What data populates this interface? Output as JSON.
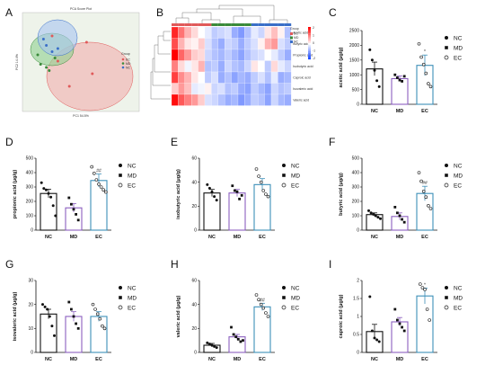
{
  "figure": {
    "panel_letters": [
      "A",
      "B",
      "C",
      "D",
      "E",
      "F",
      "G",
      "H",
      "I"
    ]
  },
  "pca": {
    "title": "PCA Score Plot",
    "xlabel": "PC1 54.5%",
    "ylabel": "PC2 14.4%",
    "legend_title": "Group",
    "groups": [
      {
        "name": "EC",
        "color": "#e05a5a",
        "points": [
          [
            -10,
            10
          ],
          [
            2,
            8
          ],
          [
            4,
            -2
          ],
          [
            -8,
            2
          ],
          [
            -4,
            -6
          ]
        ]
      },
      {
        "name": "MD",
        "color": "#3a8a3a",
        "points": [
          [
            -14,
            1
          ],
          [
            -11,
            -1
          ],
          [
            -15,
            4
          ],
          [
            -9,
            3
          ],
          [
            -12,
            0
          ]
        ]
      },
      {
        "name": "NC",
        "color": "#3a6fc8",
        "points": [
          [
            -12,
            7
          ],
          [
            -10,
            5
          ],
          [
            -13,
            9
          ],
          [
            -8,
            6
          ]
        ]
      }
    ]
  },
  "heatmap": {
    "legend_title": "Group",
    "groups": [
      "EC",
      "MD",
      "NC"
    ],
    "group_colors": [
      "#e05a5a",
      "#3a8a3a",
      "#3a6fc8"
    ],
    "scale_labels": [
      "2",
      "1",
      "0",
      "-1",
      "-2"
    ],
    "rows": [
      "Acetic acid",
      "Butyric acid",
      "Propionic acid",
      "Isobutyric acid",
      "Caproic acid",
      "Isovaleric acid",
      "Valeric acid"
    ],
    "values": [
      [
        1.7,
        1.1,
        0.6,
        0.3,
        0.0,
        -0.2,
        -0.5,
        -0.4,
        -0.3,
        -0.8,
        -1.0,
        -0.6,
        -0.2,
        -0.4,
        0.2,
        0.5,
        0.1,
        -0.6
      ],
      [
        1.4,
        0.6,
        0.2,
        0.1,
        0.4,
        -0.3,
        -0.6,
        -0.8,
        -0.4,
        -0.5,
        -0.8,
        -0.5,
        -0.3,
        0.1,
        0.6,
        0.8,
        -0.3,
        -0.5
      ],
      [
        2.0,
        1.2,
        0.8,
        0.4,
        0.3,
        -0.4,
        -0.6,
        -0.7,
        -0.5,
        -0.7,
        -0.9,
        -0.6,
        -0.4,
        -0.3,
        0.0,
        -0.2,
        -0.5,
        -0.8
      ],
      [
        1.0,
        0.3,
        -0.1,
        0.2,
        0.6,
        -0.6,
        -0.5,
        -0.8,
        -0.4,
        -0.6,
        -0.7,
        -0.4,
        0.2,
        0.0,
        -0.5,
        0.3,
        -0.2,
        -0.4
      ],
      [
        1.5,
        0.9,
        0.6,
        0.2,
        0.0,
        -0.5,
        -0.3,
        -0.8,
        -0.6,
        -0.9,
        -0.7,
        -0.8,
        -0.5,
        -0.3,
        -0.6,
        -0.2,
        -0.8,
        -0.7
      ],
      [
        0.4,
        0.8,
        0.5,
        -0.2,
        -0.1,
        0.1,
        -0.4,
        -0.3,
        -0.6,
        -0.5,
        -0.8,
        -0.9,
        -0.5,
        -0.7,
        -0.9,
        -0.4,
        -0.6,
        -0.5
      ],
      [
        1.9,
        1.3,
        1.0,
        0.8,
        0.4,
        -0.3,
        -0.4,
        -0.6,
        -0.8,
        -0.7,
        -1.0,
        -0.8,
        -0.5,
        -0.6,
        -0.9,
        -0.4,
        -0.7,
        -0.8
      ]
    ]
  },
  "chart_data": [
    {
      "type": "bar",
      "panel": "C",
      "ylabel": "acetic acid (μg/g)",
      "categories": [
        "NC",
        "MD",
        "EC"
      ],
      "values": [
        1200,
        870,
        1320
      ],
      "errors": [
        230,
        90,
        350
      ],
      "ylim": [
        0,
        2500
      ],
      "yticks": [
        0,
        500,
        1000,
        1500,
        2000,
        2500
      ],
      "significance": [
        "",
        "",
        "*"
      ],
      "points": [
        [
          1850,
          1500,
          1150,
          800,
          600
        ],
        [
          1000,
          900,
          820,
          780,
          950
        ],
        [
          2050,
          1600,
          1350,
          1050,
          700,
          600
        ]
      ]
    },
    {
      "type": "bar",
      "panel": "D",
      "ylabel": "propionic acid (μg/g)",
      "categories": [
        "NC",
        "MD",
        "EC"
      ],
      "values": [
        255,
        155,
        345
      ],
      "errors": [
        30,
        30,
        45
      ],
      "ylim": [
        0,
        500
      ],
      "yticks": [
        0,
        100,
        200,
        300,
        400,
        500
      ],
      "significance": [
        "",
        "",
        "##"
      ],
      "points": [
        [
          330,
          290,
          280,
          255,
          230,
          170,
          100
        ],
        [
          225,
          180,
          145,
          110,
          70
        ],
        [
          440,
          395,
          350,
          320,
          300,
          280,
          265
        ]
      ]
    },
    {
      "type": "bar",
      "panel": "E",
      "ylabel": "isobutyric acid (μg/g)",
      "categories": [
        "NC",
        "MD",
        "EC"
      ],
      "values": [
        31,
        31,
        38
      ],
      "errors": [
        3,
        3,
        5
      ],
      "ylim": [
        0,
        60
      ],
      "yticks": [
        0,
        20,
        40,
        60
      ],
      "significance": [
        "",
        "",
        ""
      ],
      "points": [
        [
          38,
          35,
          32,
          28,
          25
        ],
        [
          37,
          33,
          32,
          26,
          29
        ],
        [
          51,
          45,
          40,
          33,
          30,
          28
        ]
      ]
    },
    {
      "type": "bar",
      "panel": "F",
      "ylabel": "butyric acid (μg/g)",
      "categories": [
        "NC",
        "MD",
        "EC"
      ],
      "values": [
        108,
        95,
        255
      ],
      "errors": [
        12,
        25,
        50
      ],
      "ylim": [
        0,
        500
      ],
      "yticks": [
        0,
        100,
        200,
        300,
        400,
        500
      ],
      "significance": [
        "",
        "",
        "##"
      ],
      "points": [
        [
          135,
          120,
          110,
          100,
          90,
          80
        ],
        [
          160,
          120,
          100,
          75,
          55
        ],
        [
          400,
          340,
          270,
          230,
          170,
          150
        ]
      ]
    },
    {
      "type": "bar",
      "panel": "G",
      "ylabel": "isovaleric acid (μg/g)",
      "categories": [
        "NC",
        "MD",
        "EC"
      ],
      "values": [
        16,
        15,
        15
      ],
      "errors": [
        2,
        2,
        2
      ],
      "ylim": [
        0,
        30
      ],
      "yticks": [
        0,
        10,
        20,
        30
      ],
      "significance": [
        "",
        "",
        ""
      ],
      "points": [
        [
          20,
          19,
          18,
          15,
          11,
          7
        ],
        [
          21,
          18,
          15,
          12,
          10
        ],
        [
          20,
          18,
          16,
          14,
          11,
          10
        ]
      ]
    },
    {
      "type": "bar",
      "panel": "H",
      "ylabel": "valeric acid (μg/g)",
      "categories": [
        "NC",
        "MD",
        "EC"
      ],
      "values": [
        6,
        13,
        38
      ],
      "errors": [
        1.5,
        2,
        3
      ],
      "ylim": [
        0,
        60
      ],
      "yticks": [
        0,
        20,
        40,
        60
      ],
      "significance": [
        "",
        "",
        "##"
      ],
      "points": [
        [
          8,
          7,
          6,
          5,
          4
        ],
        [
          21,
          15,
          13,
          11,
          9,
          10
        ],
        [
          48,
          44,
          40,
          37,
          33,
          30
        ]
      ]
    },
    {
      "type": "bar",
      "panel": "I",
      "ylabel": "caproic acid (μg/g)",
      "categories": [
        "NC",
        "MD",
        "EC"
      ],
      "values": [
        0.58,
        0.85,
        1.57
      ],
      "errors": [
        0.2,
        0.12,
        0.22
      ],
      "ylim": [
        0,
        2.0
      ],
      "yticks": [
        0,
        0.5,
        1.0,
        1.5,
        2.0
      ],
      "significance": [
        "",
        "",
        "*"
      ],
      "points": [
        [
          1.55,
          0.6,
          0.4,
          0.35,
          0.3
        ],
        [
          1.2,
          0.9,
          0.8,
          0.7,
          0.6
        ],
        [
          1.9,
          1.8,
          1.75,
          1.2,
          0.9
        ]
      ]
    }
  ],
  "legend": {
    "entries": [
      {
        "label": "NC",
        "marker": "filled-circle"
      },
      {
        "label": "MD",
        "marker": "filled-square"
      },
      {
        "label": "EC",
        "marker": "open-circle"
      }
    ]
  },
  "colors": {
    "NC": "#111111",
    "MD": "#8b5fbf",
    "EC": "#3d8fb8",
    "pca_bg": "#eef3ea"
  }
}
